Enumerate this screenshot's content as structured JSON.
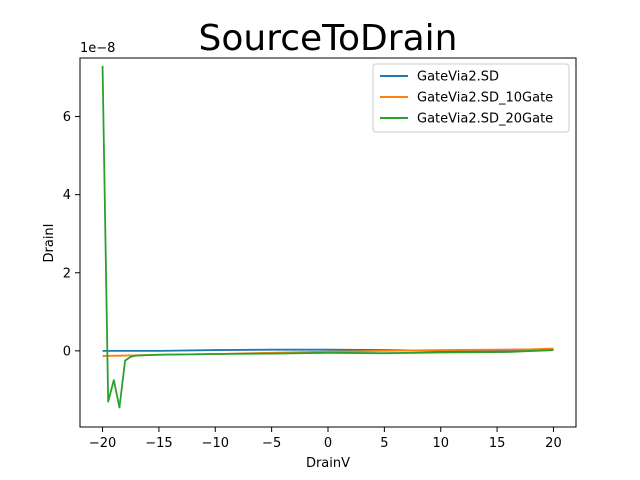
{
  "chart_data": {
    "type": "line",
    "title": "SourceToDrain",
    "xlabel": "DrainV",
    "ylabel": "DrainI",
    "y_offset_label": "1e−8",
    "xlim": [
      -22,
      22
    ],
    "ylim": [
      -1.95,
      7.5
    ],
    "xticks": [
      -20,
      -15,
      -10,
      -5,
      0,
      5,
      10,
      15,
      20
    ],
    "xtick_labels": [
      "−20",
      "−15",
      "−10",
      "−5",
      "0",
      "5",
      "10",
      "15",
      "20"
    ],
    "yticks": [
      0,
      2,
      4,
      6
    ],
    "ytick_labels": [
      "0",
      "2",
      "4",
      "6"
    ],
    "grid": false,
    "legend_position": "top-right",
    "series": [
      {
        "name": "GateVia2.SD",
        "color": "#1f77b4",
        "x": [
          -20,
          -15,
          -10,
          -5,
          0,
          5,
          10,
          15,
          20
        ],
        "y": [
          0.0,
          0.0,
          0.02,
          0.03,
          0.03,
          0.02,
          0.0,
          0.0,
          0.02
        ]
      },
      {
        "name": "GateVia2.SD_10Gate",
        "color": "#ff7f0e",
        "x": [
          -20,
          -18,
          -15,
          -10,
          -5,
          0,
          5,
          10,
          15,
          18,
          20
        ],
        "y": [
          -0.13,
          -0.12,
          -0.1,
          -0.08,
          -0.05,
          -0.02,
          0.0,
          0.02,
          0.03,
          0.04,
          0.06
        ]
      },
      {
        "name": "GateVia2.SD_20Gate",
        "color": "#2ca02c",
        "x": [
          -20,
          -19.5,
          -19,
          -18.5,
          -18,
          -17.5,
          -17,
          -15,
          -10,
          -5,
          0,
          5,
          10,
          16,
          20
        ],
        "y": [
          7.3,
          -1.3,
          -0.75,
          -1.45,
          -0.25,
          -0.15,
          -0.12,
          -0.1,
          -0.08,
          -0.07,
          -0.05,
          -0.06,
          -0.04,
          -0.03,
          0.02
        ]
      }
    ]
  }
}
